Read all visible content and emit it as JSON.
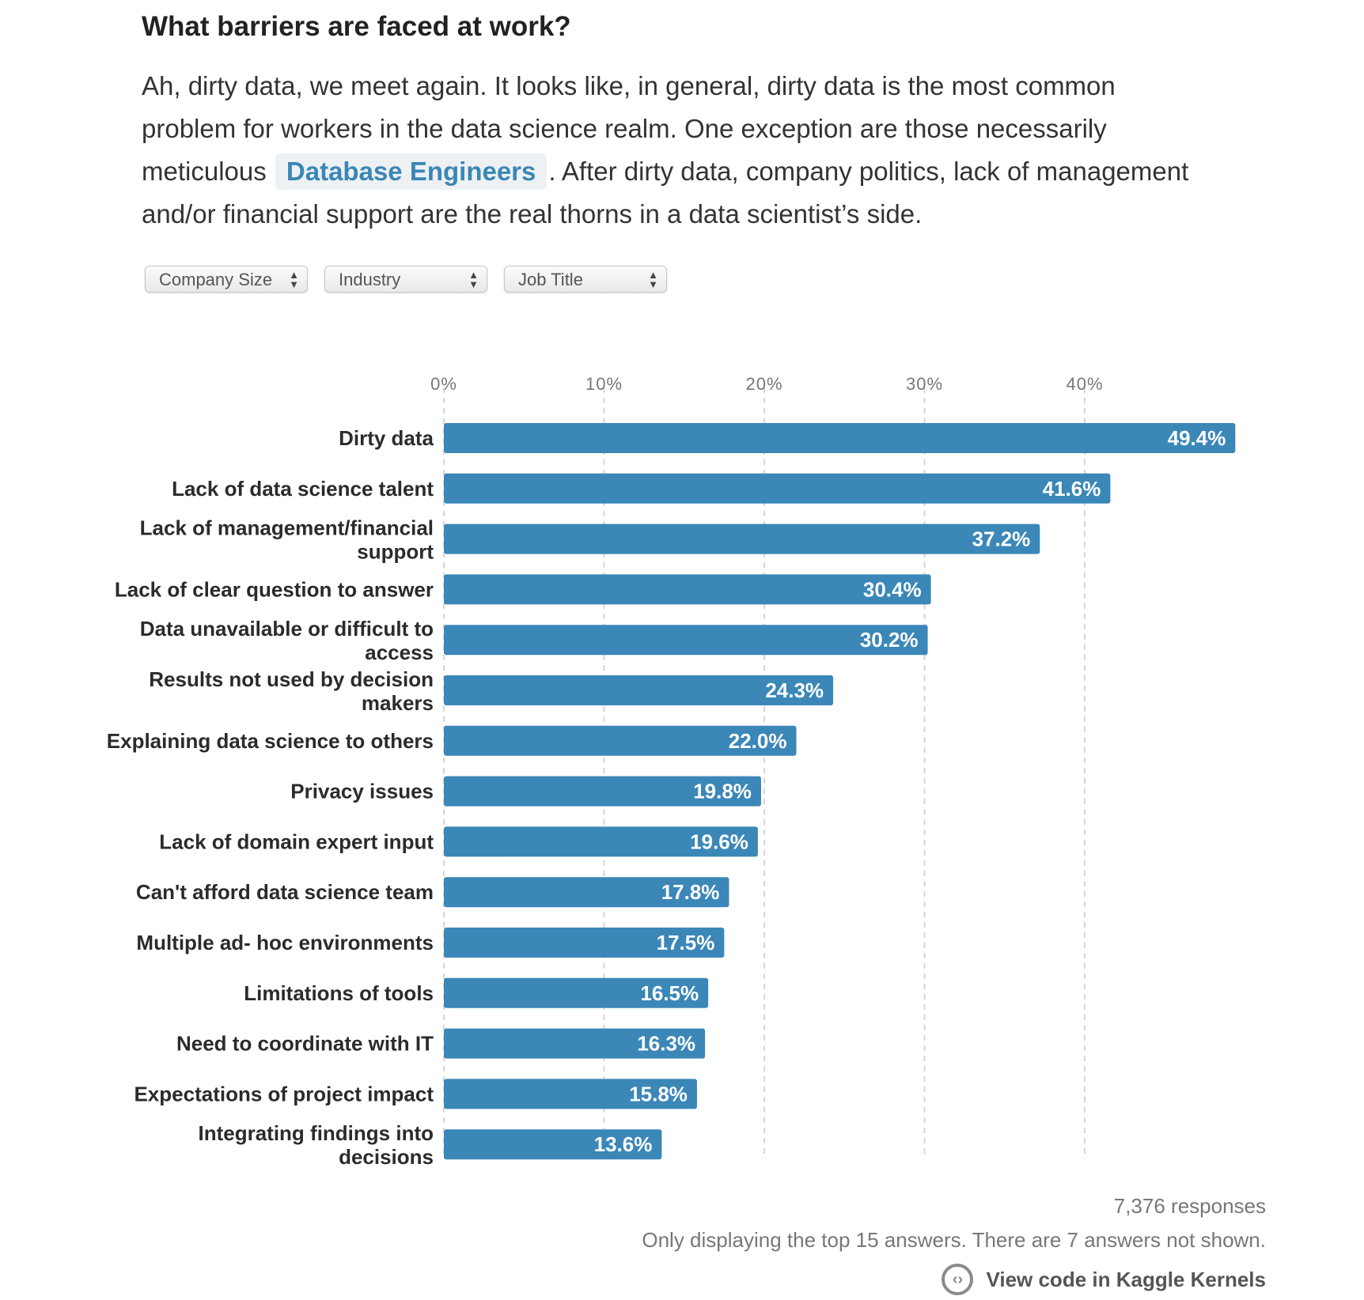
{
  "heading": "What barriers are faced at work?",
  "intro": {
    "before": "Ah, dirty data, we meet again. It looks like, in general, dirty data is the most common problem for workers in the data science realm. One exception are those necessarily meticulous ",
    "chip": "Database Engineers",
    "after": ". After dirty data, company politics, lack of management and/or financial support are the real thorns in a data scientist’s side."
  },
  "filters": [
    {
      "label": "Company Size"
    },
    {
      "label": "Industry"
    },
    {
      "label": "Job Title"
    }
  ],
  "colors": {
    "bar": "#3b87b8",
    "chip_text": "#3a87b5"
  },
  "chart_data": {
    "type": "bar",
    "orientation": "horizontal",
    "categories": [
      "Dirty data",
      "Lack of data science talent",
      "Lack of management/financial support",
      "Lack of clear question to answer",
      "Data unavailable or difficult to access",
      "Results not used by decision makers",
      "Explaining data science to others",
      "Privacy issues",
      "Lack of domain expert input",
      "Can't afford data science team",
      "Multiple ad- hoc environments",
      "Limitations of tools",
      "Need to coordinate with IT",
      "Expectations of project impact",
      "Integrating findings into decisions"
    ],
    "values": [
      49.4,
      41.6,
      37.2,
      30.4,
      30.2,
      24.3,
      22.0,
      19.8,
      19.6,
      17.8,
      17.5,
      16.5,
      16.3,
      15.8,
      13.6
    ],
    "value_labels": [
      "49.4%",
      "41.6%",
      "37.2%",
      "30.4%",
      "30.2%",
      "24.3%",
      "22.0%",
      "19.8%",
      "19.6%",
      "17.8%",
      "17.5%",
      "16.5%",
      "16.3%",
      "15.8%",
      "13.6%"
    ],
    "x_ticks": [
      0,
      10,
      20,
      30,
      40
    ],
    "x_tick_labels": [
      "0%",
      "10%",
      "20%",
      "30%",
      "40%"
    ],
    "xlim": [
      0,
      50
    ],
    "grid": true,
    "title": "",
    "xlabel": "",
    "ylabel": ""
  },
  "footer": {
    "responses": "7,376 responses",
    "note": "Only displaying the top 15 answers. There are 7 answers not shown.",
    "kaggle_link": "View code in Kaggle Kernels"
  }
}
